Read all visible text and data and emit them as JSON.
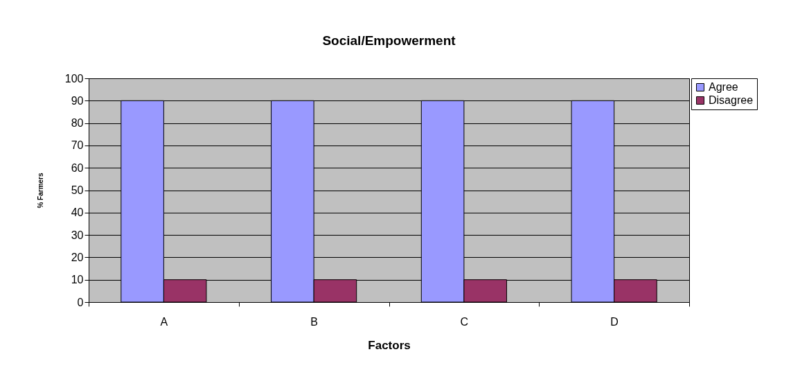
{
  "chart_data": {
    "type": "bar",
    "title": "Social/Empowerment",
    "xlabel": "Factors",
    "ylabel": "% Farmers",
    "categories": [
      "A",
      "B",
      "C",
      "D"
    ],
    "series": [
      {
        "name": "Agree",
        "color": "#9999ff",
        "values": [
          90,
          90,
          90,
          90
        ]
      },
      {
        "name": "Disagree",
        "color": "#993366",
        "values": [
          10,
          10,
          10,
          10
        ]
      }
    ],
    "ylim": [
      0,
      100
    ],
    "yticks": [
      0,
      10,
      20,
      30,
      40,
      50,
      60,
      70,
      80,
      90,
      100
    ],
    "grid": "y",
    "legend": "right"
  }
}
